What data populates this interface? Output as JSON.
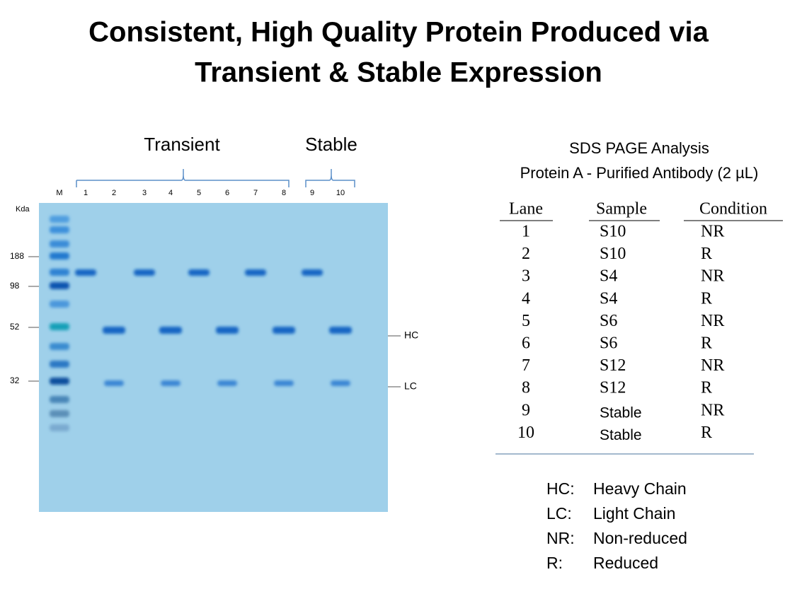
{
  "title": [
    "Consistent, High Quality Protein Produced via",
    "Transient & Stable Expression"
  ],
  "gel": {
    "groups": [
      "Transient",
      "Stable"
    ],
    "lanes": [
      "M",
      "1",
      "2",
      "3",
      "4",
      "5",
      "6",
      "7",
      "8",
      "9",
      "10"
    ],
    "marker_unit": "Kda",
    "markers": [
      "188",
      "98",
      "52",
      "32"
    ],
    "bands": [
      "HC",
      "LC"
    ]
  },
  "table": {
    "caption": [
      "SDS PAGE Analysis",
      "Protein A - Purified Antibody (2 µL)"
    ],
    "header": [
      "Lane",
      "Sample",
      "Condition"
    ],
    "rows": [
      [
        "1",
        "S10",
        "NR"
      ],
      [
        "2",
        "S10",
        "R"
      ],
      [
        "3",
        "S4",
        "NR"
      ],
      [
        "4",
        "S4",
        "R"
      ],
      [
        "5",
        "S6",
        "NR"
      ],
      [
        "6",
        "S6",
        "R"
      ],
      [
        "7",
        "S12",
        "NR"
      ],
      [
        "8",
        "S12",
        "R"
      ],
      [
        "9",
        "Stable",
        "NR"
      ],
      [
        "10",
        "Stable",
        "R"
      ]
    ]
  },
  "legend": [
    [
      "HC:",
      "Heavy Chain"
    ],
    [
      "LC:",
      "Light Chain"
    ],
    [
      "NR:",
      "Non-reduced"
    ],
    [
      "R:",
      "Reduced"
    ]
  ]
}
